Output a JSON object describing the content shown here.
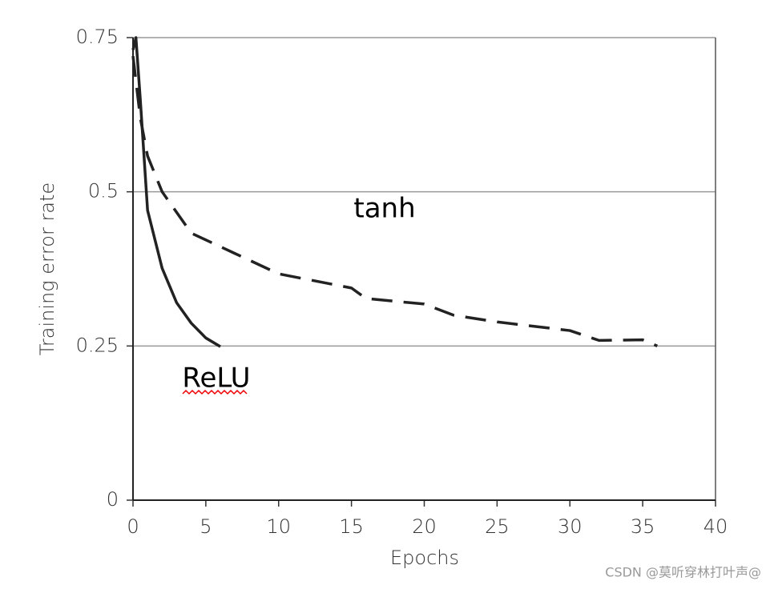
{
  "chart_data": {
    "type": "line",
    "xlabel": "Epochs",
    "ylabel": "Training error rate",
    "series": [
      {
        "name": "ReLU",
        "color": "#222222",
        "line_style": "solid",
        "x": [
          0,
          0.2,
          0.5,
          1,
          2,
          3,
          4,
          5,
          6
        ],
        "values": [
          0.73,
          0.75,
          0.65,
          0.47,
          0.376,
          0.32,
          0.287,
          0.263,
          0.249
        ]
      },
      {
        "name": "tanh",
        "color": "#222222",
        "line_style": "dashed",
        "x": [
          0,
          0.5,
          1,
          2,
          4,
          7,
          10,
          15,
          16,
          20,
          22,
          25,
          30,
          32,
          35,
          36
        ],
        "values": [
          0.72,
          0.62,
          0.558,
          0.5,
          0.433,
          0.4,
          0.367,
          0.344,
          0.327,
          0.318,
          0.3,
          0.289,
          0.275,
          0.259,
          0.26,
          0.25
        ]
      }
    ],
    "xlim": [
      0,
      40
    ],
    "xticks": [
      0,
      5,
      10,
      15,
      20,
      25,
      30,
      35,
      40
    ],
    "ylim": [
      0,
      0.75
    ],
    "yticks": [
      0,
      0.25,
      0.5,
      0.75
    ],
    "grid": true
  },
  "watermark": "CSDN @莫听穿林打叶声@"
}
